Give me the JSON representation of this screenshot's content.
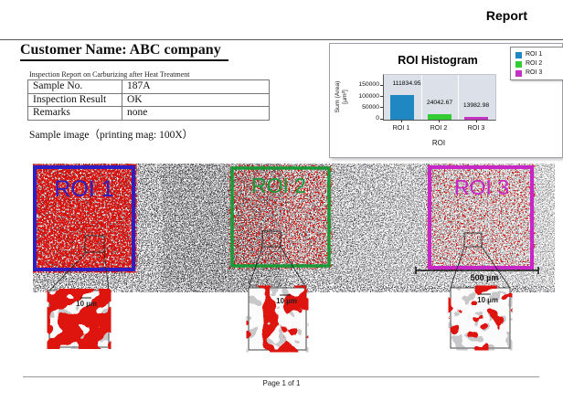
{
  "page": {
    "report_label": "Report",
    "footer": "Page 1 of 1"
  },
  "header": {
    "customer_name": "Customer Name: ABC company",
    "subtitle": "Inspection Report on Carburizing after Heat Treatment"
  },
  "info_table": {
    "rows": [
      {
        "label": "Sample No.",
        "value": "187A"
      },
      {
        "label": "Inspection Result",
        "value": "OK"
      },
      {
        "label": "Remarks",
        "value": "none"
      }
    ]
  },
  "sample_image": {
    "caption": "Sample image（printing mag: 100X）",
    "rois": [
      {
        "label": "ROI 1",
        "color": "#2d1fc4"
      },
      {
        "label": "ROI 2",
        "color": "#189a38"
      },
      {
        "label": "ROI 3",
        "color": "#c627c6"
      }
    ],
    "scale_bar": "500 µm",
    "inset_scale": "10 µm",
    "particle_color": "#dd1410"
  },
  "chart_data": {
    "type": "bar",
    "title": "ROI Histogram",
    "categories": [
      "ROI 1",
      "ROI 2",
      "ROI 3"
    ],
    "values": [
      111834.95,
      24042.67,
      13982.98
    ],
    "value_labels": [
      "111834.95",
      "24042.67",
      "13982.98"
    ],
    "colors": [
      "#1f88c2",
      "#33cc33",
      "#c233c2"
    ],
    "legend": [
      "ROI 1",
      "ROI 2",
      "ROI 3"
    ],
    "legend_position": "top-right",
    "xlabel": "ROI",
    "ylabel": "Sum (Area) [µm²]",
    "ylim": [
      0,
      200000
    ],
    "yticks": [
      0,
      50000,
      100000,
      150000
    ],
    "grid": false
  }
}
